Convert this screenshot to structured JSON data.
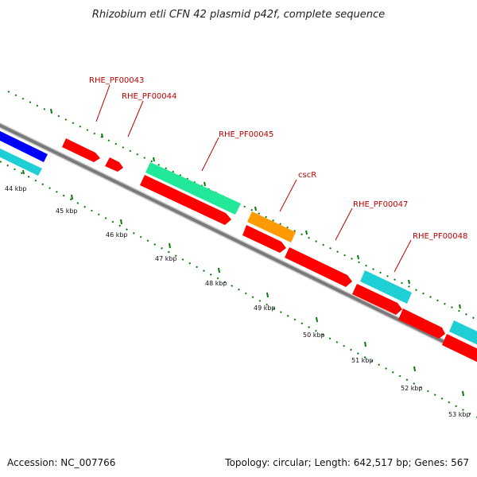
{
  "title": "Rhizobium etli CFN 42 plasmid p42f, complete sequence",
  "footer": {
    "accession": "Accession: NC_007766",
    "summary": "Topology: circular; Length: 642,517 bp; Genes: 567"
  },
  "tick_labels": [
    "44 kbp",
    "45 kbp",
    "46 kbp",
    "47 kbp",
    "48 kbp",
    "49 kbp",
    "50 kbp",
    "51 kbp",
    "52 kbp",
    "53 kbp"
  ],
  "gene_labels": [
    "RHE_PF00043",
    "RHE_PF00044",
    "RHE_PF00045",
    "cscR",
    "RHE_PF00047",
    "RHE_PF00048"
  ],
  "colors": {
    "background": "#ffffff",
    "backbone": "#888888",
    "gene_red": "#ff0000",
    "gene_blue": "#0000ff",
    "gene_cyan": "#1fcfd6",
    "gene_green": "#22e89a",
    "gene_orange": "#ff9a00",
    "tick_green": "#0a7a0a",
    "label_red": "#c00000"
  }
}
